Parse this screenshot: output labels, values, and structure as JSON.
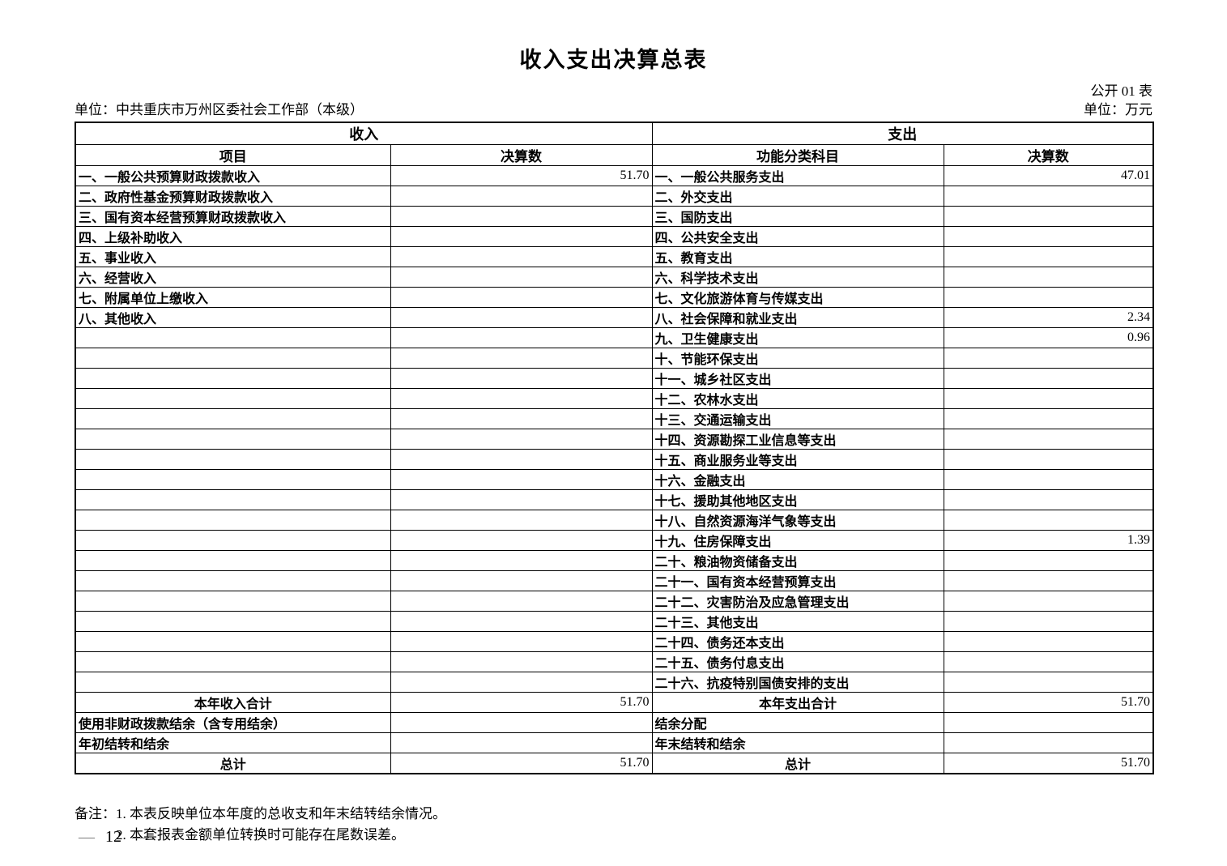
{
  "page": {
    "title": "收入支出决算总表",
    "table_no": "公开 01 表",
    "unit_left": "单位：中共重庆市万州区委社会工作部（本级）",
    "unit_right": "单位：万元",
    "page_number": "12",
    "dash": "—"
  },
  "table": {
    "income_header": "收入",
    "expense_header": "支出",
    "col_headers": [
      "项目",
      "决算数",
      "功能分类科目",
      "决算数"
    ],
    "rows": [
      {
        "income_item": "一、一般公共预算财政拨款收入",
        "income_value": "51.70",
        "expense_item": "一、一般公共服务支出",
        "expense_value": "47.01"
      },
      {
        "income_item": "二、政府性基金预算财政拨款收入",
        "income_value": "",
        "expense_item": "二、外交支出",
        "expense_value": ""
      },
      {
        "income_item": "三、国有资本经营预算财政拨款收入",
        "income_value": "",
        "expense_item": "三、国防支出",
        "expense_value": ""
      },
      {
        "income_item": "四、上级补助收入",
        "income_value": "",
        "expense_item": "四、公共安全支出",
        "expense_value": ""
      },
      {
        "income_item": "五、事业收入",
        "income_value": "",
        "expense_item": "五、教育支出",
        "expense_value": ""
      },
      {
        "income_item": "六、经营收入",
        "income_value": "",
        "expense_item": "六、科学技术支出",
        "expense_value": ""
      },
      {
        "income_item": "七、附属单位上缴收入",
        "income_value": "",
        "expense_item": "七、文化旅游体育与传媒支出",
        "expense_value": ""
      },
      {
        "income_item": "八、其他收入",
        "income_value": "",
        "expense_item": "八、社会保障和就业支出",
        "expense_value": "2.34"
      },
      {
        "income_item": "",
        "income_value": "",
        "expense_item": "九、卫生健康支出",
        "expense_value": "0.96"
      },
      {
        "income_item": "",
        "income_value": "",
        "expense_item": "十、节能环保支出",
        "expense_value": ""
      },
      {
        "income_item": "",
        "income_value": "",
        "expense_item": "十一、城乡社区支出",
        "expense_value": ""
      },
      {
        "income_item": "",
        "income_value": "",
        "expense_item": "十二、农林水支出",
        "expense_value": ""
      },
      {
        "income_item": "",
        "income_value": "",
        "expense_item": "十三、交通运输支出",
        "expense_value": ""
      },
      {
        "income_item": "",
        "income_value": "",
        "expense_item": "十四、资源勘探工业信息等支出",
        "expense_value": ""
      },
      {
        "income_item": "",
        "income_value": "",
        "expense_item": "十五、商业服务业等支出",
        "expense_value": ""
      },
      {
        "income_item": "",
        "income_value": "",
        "expense_item": "十六、金融支出",
        "expense_value": ""
      },
      {
        "income_item": "",
        "income_value": "",
        "expense_item": "十七、援助其他地区支出",
        "expense_value": ""
      },
      {
        "income_item": "",
        "income_value": "",
        "expense_item": "十八、自然资源海洋气象等支出",
        "expense_value": ""
      },
      {
        "income_item": "",
        "income_value": "",
        "expense_item": "十九、住房保障支出",
        "expense_value": "1.39"
      },
      {
        "income_item": "",
        "income_value": "",
        "expense_item": "二十、粮油物资储备支出",
        "expense_value": ""
      },
      {
        "income_item": "",
        "income_value": "",
        "expense_item": "二十一、国有资本经营预算支出",
        "expense_value": ""
      },
      {
        "income_item": "",
        "income_value": "",
        "expense_item": "二十二、灾害防治及应急管理支出",
        "expense_value": ""
      },
      {
        "income_item": "",
        "income_value": "",
        "expense_item": "二十三、其他支出",
        "expense_value": ""
      },
      {
        "income_item": "",
        "income_value": "",
        "expense_item": "二十四、债务还本支出",
        "expense_value": ""
      },
      {
        "income_item": "",
        "income_value": "",
        "expense_item": "二十五、债务付息支出",
        "expense_value": ""
      },
      {
        "income_item": "",
        "income_value": "",
        "expense_item": "二十六、抗疫特别国债安排的支出",
        "expense_value": ""
      }
    ],
    "summary_rows": [
      {
        "income_item": "本年收入合计",
        "income_value": "51.70",
        "expense_item": "本年支出合计",
        "expense_value": "51.70",
        "center": true
      },
      {
        "income_item": "使用非财政拨款结余（含专用结余）",
        "income_value": "",
        "expense_item": "结余分配",
        "expense_value": "",
        "center": false
      },
      {
        "income_item": "年初结转和结余",
        "income_value": "",
        "expense_item": "年末结转和结余",
        "expense_value": "",
        "center": false
      },
      {
        "income_item": "总计",
        "income_value": "51.70",
        "expense_item": "总计",
        "expense_value": "51.70",
        "center": true
      }
    ]
  },
  "notes": {
    "label": "备注：",
    "items": [
      "1. 本表反映单位本年度的总收支和年末结转结余情况。",
      "2. 本套报表金额单位转换时可能存在尾数误差。"
    ]
  }
}
